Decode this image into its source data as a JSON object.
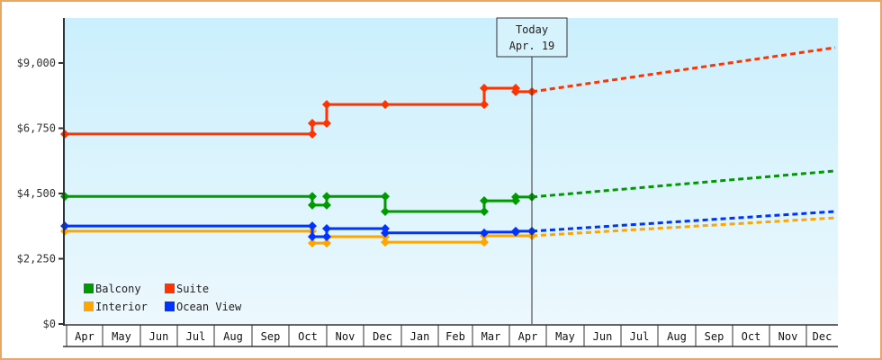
{
  "chart_data": {
    "type": "line",
    "title": "",
    "xlabel": "",
    "ylabel": "",
    "ylim": [
      0,
      10500
    ],
    "grid": false,
    "legend_position": "bottom-left inside plot",
    "y_ticks": [
      {
        "value": 0,
        "label": "$0"
      },
      {
        "value": 2250,
        "label": "$2,250"
      },
      {
        "value": 4500,
        "label": "$4,500"
      },
      {
        "value": 6750,
        "label": "$6,750"
      },
      {
        "value": 9000,
        "label": "$9,000"
      }
    ],
    "x_months": [
      "Apr",
      "May",
      "Jun",
      "Jul",
      "Aug",
      "Sep",
      "Oct",
      "Nov",
      "Dec",
      "Jan",
      "Feb",
      "Mar",
      "Apr",
      "May",
      "Jun",
      "Jul",
      "Aug",
      "Sep",
      "Oct",
      "Nov",
      "Dec"
    ],
    "x_month_bounds": [
      74,
      114,
      156,
      197,
      238,
      280,
      321,
      363,
      404,
      446,
      487,
      525,
      566,
      607,
      649,
      690,
      731,
      773,
      814,
      855,
      896,
      931
    ],
    "today": {
      "line1": "Today",
      "line2": "Apr. 19",
      "x": 591
    },
    "series": [
      {
        "name": "Suite",
        "color": "#ff3300",
        "history": [
          [
            72,
            6550
          ],
          [
            347,
            6550
          ],
          [
            347,
            6920
          ],
          [
            363,
            6920
          ],
          [
            363,
            7570
          ],
          [
            538,
            7570
          ],
          [
            538,
            8130
          ],
          [
            573,
            8130
          ],
          [
            573,
            8010
          ],
          [
            591,
            8010
          ]
        ],
        "markers": [
          [
            72,
            6550
          ],
          [
            347,
            6550
          ],
          [
            347,
            6920
          ],
          [
            363,
            6920
          ],
          [
            363,
            7570
          ],
          [
            428,
            7570
          ],
          [
            538,
            7570
          ],
          [
            538,
            8130
          ],
          [
            573,
            8130
          ],
          [
            573,
            8010
          ],
          [
            591,
            8010
          ]
        ],
        "projection": [
          [
            591,
            8010
          ],
          [
            928,
            9530
          ]
        ]
      },
      {
        "name": "Balcony",
        "color": "#009900",
        "history": [
          [
            72,
            4400
          ],
          [
            347,
            4400
          ],
          [
            347,
            4100
          ],
          [
            363,
            4100
          ],
          [
            363,
            4400
          ],
          [
            428,
            4400
          ],
          [
            428,
            3880
          ],
          [
            538,
            3880
          ],
          [
            538,
            4250
          ],
          [
            573,
            4250
          ],
          [
            573,
            4380
          ],
          [
            591,
            4380
          ]
        ],
        "markers": [
          [
            72,
            4400
          ],
          [
            347,
            4400
          ],
          [
            347,
            4100
          ],
          [
            363,
            4100
          ],
          [
            363,
            4400
          ],
          [
            428,
            4400
          ],
          [
            428,
            3880
          ],
          [
            538,
            3880
          ],
          [
            538,
            4250
          ],
          [
            573,
            4250
          ],
          [
            573,
            4380
          ],
          [
            591,
            4380
          ]
        ],
        "projection": [
          [
            591,
            4380
          ],
          [
            928,
            5280
          ]
        ]
      },
      {
        "name": "Ocean View",
        "color": "#0033ff",
        "history": [
          [
            72,
            3380
          ],
          [
            347,
            3380
          ],
          [
            347,
            3010
          ],
          [
            363,
            3010
          ],
          [
            363,
            3290
          ],
          [
            428,
            3290
          ],
          [
            428,
            3140
          ],
          [
            538,
            3140
          ],
          [
            538,
            3170
          ],
          [
            573,
            3170
          ],
          [
            573,
            3200
          ],
          [
            591,
            3200
          ]
        ],
        "markers": [
          [
            72,
            3380
          ],
          [
            347,
            3380
          ],
          [
            347,
            3010
          ],
          [
            363,
            3010
          ],
          [
            363,
            3290
          ],
          [
            428,
            3290
          ],
          [
            428,
            3140
          ],
          [
            538,
            3140
          ],
          [
            573,
            3170
          ],
          [
            573,
            3200
          ],
          [
            591,
            3200
          ]
        ],
        "projection": [
          [
            591,
            3200
          ],
          [
            928,
            3880
          ]
        ]
      },
      {
        "name": "Interior",
        "color": "#ffa500",
        "history": [
          [
            72,
            3200
          ],
          [
            347,
            3200
          ],
          [
            347,
            2790
          ],
          [
            363,
            2790
          ],
          [
            363,
            3010
          ],
          [
            428,
            3010
          ],
          [
            428,
            2820
          ],
          [
            538,
            2820
          ],
          [
            538,
            3040
          ],
          [
            591,
            3040
          ]
        ],
        "markers": [
          [
            72,
            3200
          ],
          [
            347,
            3200
          ],
          [
            347,
            2790
          ],
          [
            363,
            2790
          ],
          [
            363,
            3010
          ],
          [
            428,
            3010
          ],
          [
            428,
            2820
          ],
          [
            538,
            2820
          ],
          [
            538,
            3040
          ],
          [
            591,
            3040
          ]
        ],
        "projection": [
          [
            591,
            3040
          ],
          [
            928,
            3660
          ]
        ]
      }
    ]
  },
  "legend": [
    {
      "label": "Balcony",
      "color": "#009900"
    },
    {
      "label": "Suite",
      "color": "#ff3300"
    },
    {
      "label": "Interior",
      "color": "#ffa500"
    },
    {
      "label": "Ocean View",
      "color": "#0033ff"
    }
  ],
  "colors": {
    "frame_border": "#e8a862",
    "plot_top": "#cbeffd",
    "plot_bottom": "#ecf8fd",
    "axis": "#333333"
  }
}
